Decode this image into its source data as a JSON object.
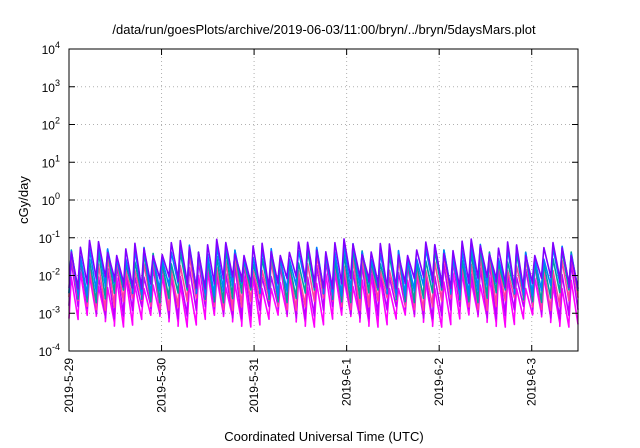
{
  "chart_data": {
    "type": "line",
    "title": "/data/run/goesPlots/archive/2019-06-03/11:00/bryn/../bryn/5daysMars.plot",
    "xlabel": "Coordinated Universal Time (UTC)",
    "ylabel": "cGy/day",
    "yscale": "log",
    "ylim": [
      0.0001,
      10000
    ],
    "xlim": [
      "2019-05-29",
      "2019-06-03 12:00"
    ],
    "x_ticks": [
      "2019-5-29",
      "2019-5-30",
      "2019-5-31",
      "2019-6-1",
      "2019-6-2",
      "2019-6-3"
    ],
    "y_ticks": [
      {
        "base": "10",
        "exp": "-4"
      },
      {
        "base": "10",
        "exp": "-3"
      },
      {
        "base": "10",
        "exp": "-2"
      },
      {
        "base": "10",
        "exp": "-1"
      },
      {
        "base": "10",
        "exp": "0"
      },
      {
        "base": "10",
        "exp": "1"
      },
      {
        "base": "10",
        "exp": "2"
      },
      {
        "base": "10",
        "exp": "3"
      },
      {
        "base": "10",
        "exp": "4"
      }
    ],
    "grid": true,
    "legend": "none",
    "cycle_count": 56,
    "series": [
      {
        "color": "#ff00ff",
        "peak": 0.01,
        "trough": 0.0009
      },
      {
        "color": "#c000ff",
        "peak": 0.02,
        "trough": 0.0015
      },
      {
        "color": "#ff40a0",
        "peak": 0.03,
        "trough": 0.0025
      },
      {
        "color": "#00a0a0",
        "peak": 0.045,
        "trough": 0.004
      },
      {
        "color": "#0080ff",
        "peak": 0.06,
        "trough": 0.006
      },
      {
        "color": "#8000ff",
        "peak": 0.075,
        "trough": 0.009
      }
    ]
  }
}
